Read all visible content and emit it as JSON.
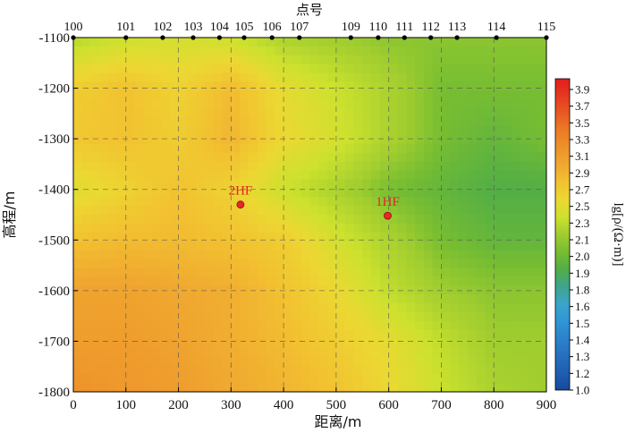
{
  "chart_data": {
    "type": "heatmap",
    "title": "点号",
    "xlabel": "距离/m",
    "ylabel": "高程/m",
    "xlim": [
      0,
      900
    ],
    "ylim": [
      -1800,
      -1100
    ],
    "x_ticks": [
      "0",
      "100",
      "200",
      "300",
      "400",
      "500",
      "600",
      "700",
      "800",
      "900"
    ],
    "y_ticks": [
      "-1100",
      "-1200",
      "-1300",
      "-1400",
      "-1500",
      "-1600",
      "-1700",
      "-1800"
    ],
    "stations": [
      {
        "label": "100",
        "x": 0
      },
      {
        "label": "101",
        "x": 100
      },
      {
        "label": "102",
        "x": 170
      },
      {
        "label": "103",
        "x": 228
      },
      {
        "label": "104",
        "x": 278
      },
      {
        "label": "105",
        "x": 325
      },
      {
        "label": "106",
        "x": 378
      },
      {
        "label": "107",
        "x": 430
      },
      {
        "label": "109",
        "x": 528
      },
      {
        "label": "110",
        "x": 580
      },
      {
        "label": "111",
        "x": 630
      },
      {
        "label": "112",
        "x": 680
      },
      {
        "label": "113",
        "x": 730
      },
      {
        "label": "114",
        "x": 805
      },
      {
        "label": "115",
        "x": 900
      }
    ],
    "boreholes": [
      {
        "label": "2HF",
        "x": 318,
        "y": -1430
      },
      {
        "label": "1HF",
        "x": 598,
        "y": -1452
      }
    ],
    "colorbar": {
      "label": "lg[ρ/(Ω·m)]",
      "ticks": [
        "3.9",
        "3.7",
        "3.5",
        "3.3",
        "3.1",
        "2.9",
        "2.7",
        "2.5",
        "2.3",
        "2.1",
        "2.0",
        "1.9",
        "1.8",
        "1.6",
        "1.5",
        "1.4",
        "1.3",
        "1.2",
        "1.0"
      ],
      "values": [
        3.9,
        3.7,
        3.5,
        3.3,
        3.1,
        2.9,
        2.7,
        2.5,
        2.3,
        2.1,
        2.0,
        1.9,
        1.8,
        1.6,
        1.5,
        1.4,
        1.3,
        1.2,
        1.0
      ],
      "colors": [
        "#e31d1d",
        "#e53a20",
        "#e95a23",
        "#ec7b27",
        "#ee922a",
        "#f0a830",
        "#f2c231",
        "#ecd832",
        "#cce12e",
        "#a0cd2f",
        "#77bd32",
        "#52ae46",
        "#3fa48c",
        "#3aa5c8",
        "#3196d6",
        "#2b83cc",
        "#2670bf",
        "#1e5eb2",
        "#1848a0"
      ]
    },
    "field": {
      "x": [
        0,
        100,
        200,
        300,
        400,
        500,
        600,
        700,
        800,
        900
      ],
      "y": [
        -1100,
        -1200,
        -1300,
        -1400,
        -1500,
        -1600,
        -1700,
        -1800
      ],
      "z": [
        [
          2.2,
          2.3,
          2.35,
          2.3,
          2.15,
          2.1,
          2.05,
          2.05,
          2.05,
          2.05
        ],
        [
          2.6,
          2.7,
          2.55,
          2.75,
          2.45,
          2.3,
          2.15,
          2.0,
          2.0,
          2.0
        ],
        [
          2.65,
          2.7,
          2.6,
          2.8,
          2.5,
          2.35,
          2.15,
          2.0,
          1.95,
          2.0
        ],
        [
          2.4,
          2.55,
          2.7,
          2.55,
          2.3,
          2.15,
          2.0,
          1.95,
          1.9,
          1.9
        ],
        [
          2.7,
          2.75,
          2.75,
          2.7,
          2.6,
          2.35,
          2.15,
          2.0,
          1.95,
          1.95
        ],
        [
          2.95,
          2.95,
          2.9,
          2.85,
          2.7,
          2.5,
          2.25,
          2.1,
          2.05,
          2.05
        ],
        [
          3.0,
          3.0,
          2.95,
          2.85,
          2.75,
          2.6,
          2.45,
          2.25,
          2.1,
          2.1
        ],
        [
          3.1,
          3.05,
          3.0,
          2.9,
          2.8,
          2.7,
          2.5,
          2.3,
          2.15,
          2.1
        ]
      ]
    }
  }
}
